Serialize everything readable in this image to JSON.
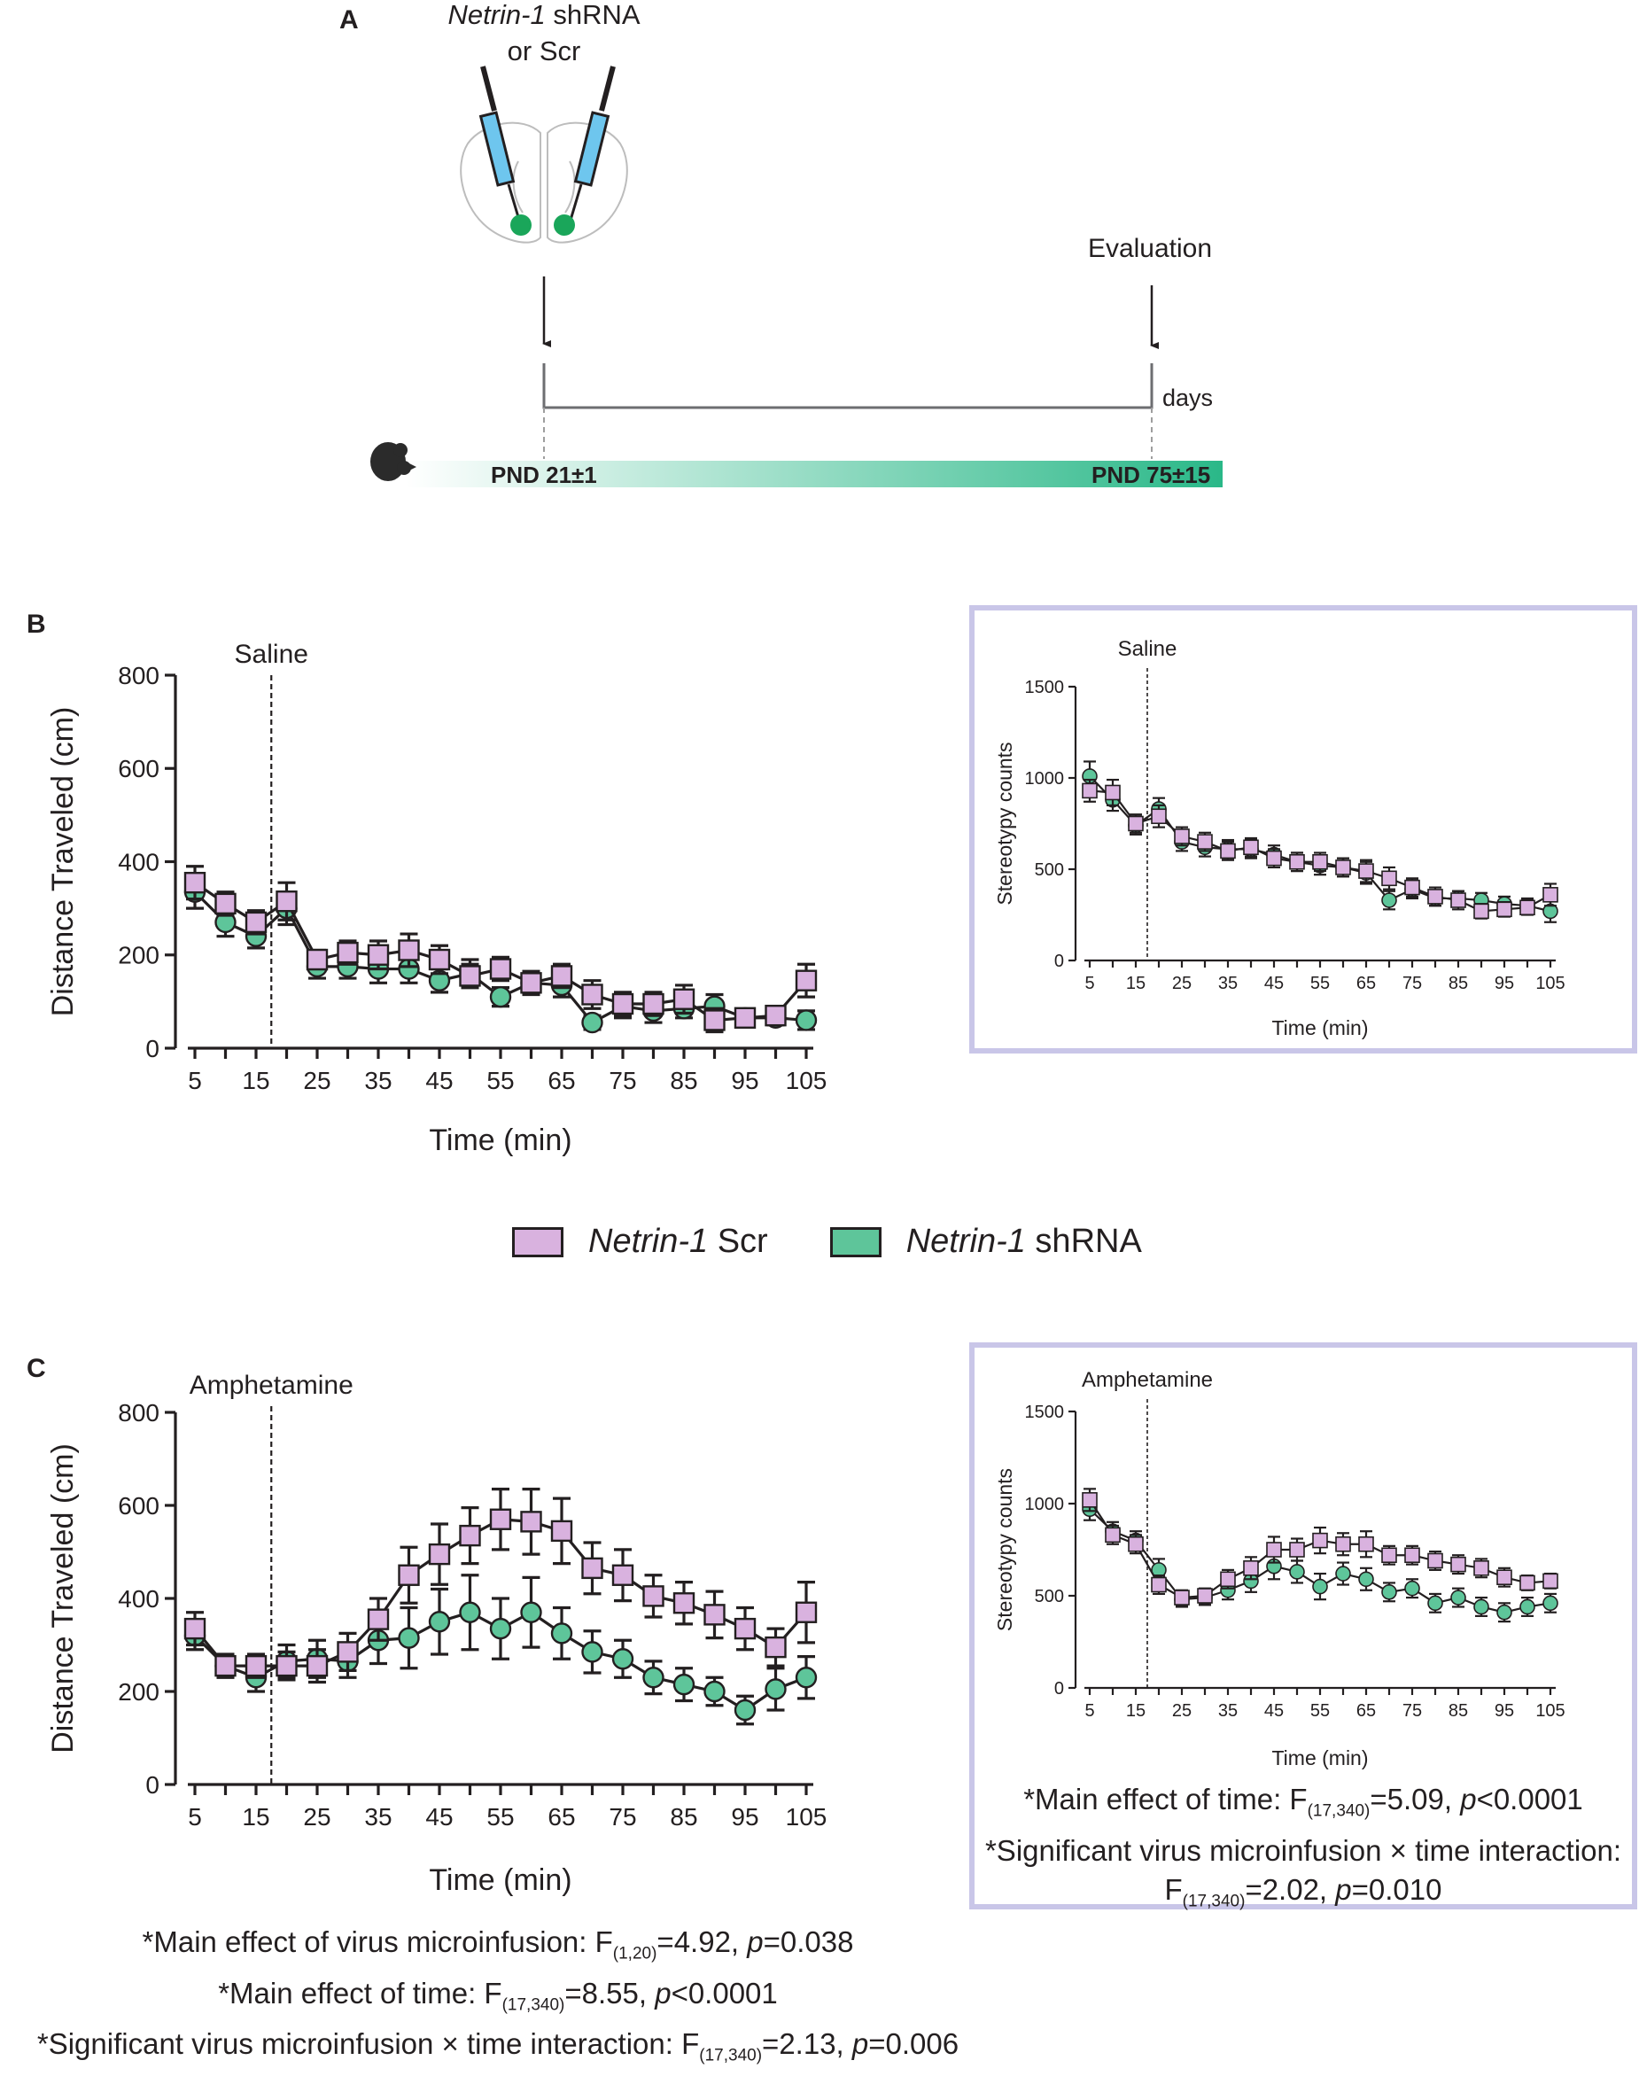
{
  "panel_letters": {
    "a": "A",
    "b": "B",
    "c": "C"
  },
  "timeline": {
    "injection_label_gene": "Netrin-1",
    "injection_label_rest": " shRNA",
    "injection_label_line2": "or Scr",
    "evaluation_label": "Evaluation",
    "days_label": "days",
    "start_label": "PND 21±1",
    "end_label": "PND 75±15",
    "colors": {
      "syringe": "#6ec6ee",
      "dot": "#1aa65a",
      "bar_start": "#ffffff",
      "bar_end": "#2ab888"
    }
  },
  "legend": {
    "scr_gene": "Netrin-1",
    "scr_rest": " Scr",
    "shrna_gene": "Netrin-1",
    "shrna_rest": " shRNA"
  },
  "colors": {
    "scr": "#d9b2df",
    "shrna": "#5ec59a",
    "inset_border": "#c9c6e8",
    "axis": "#231f20"
  },
  "chart_data": [
    {
      "id": "B-main",
      "type": "line",
      "treatment": "Saline",
      "xlabel": "Time (min)",
      "ylabel": "Distance Traveled (cm)",
      "xlim": [
        5,
        105
      ],
      "ylim": [
        0,
        800
      ],
      "yticks": [
        0,
        200,
        400,
        600,
        800
      ],
      "xticks": [
        5,
        15,
        25,
        35,
        45,
        55,
        65,
        75,
        85,
        95,
        105
      ],
      "injection_x": 17.5,
      "x": [
        5,
        10,
        15,
        20,
        25,
        30,
        35,
        40,
        45,
        50,
        55,
        60,
        65,
        70,
        75,
        80,
        85,
        90,
        95,
        100,
        105
      ],
      "series": [
        {
          "name": "Netrin-1 Scr",
          "marker": "square",
          "values": [
            355,
            310,
            270,
            315,
            190,
            205,
            200,
            210,
            190,
            155,
            170,
            140,
            155,
            115,
            95,
            95,
            105,
            60,
            65,
            70,
            145
          ],
          "errors": [
            35,
            25,
            25,
            40,
            20,
            25,
            30,
            35,
            30,
            25,
            25,
            20,
            25,
            30,
            25,
            25,
            30,
            25,
            15,
            20,
            35
          ]
        },
        {
          "name": "Netrin-1 shRNA",
          "marker": "circle",
          "values": [
            335,
            270,
            240,
            300,
            175,
            175,
            170,
            170,
            145,
            160,
            110,
            140,
            135,
            55,
            90,
            80,
            85,
            90,
            65,
            65,
            60
          ],
          "errors": [
            35,
            30,
            25,
            35,
            25,
            25,
            30,
            30,
            25,
            30,
            20,
            25,
            25,
            15,
            25,
            25,
            20,
            25,
            15,
            15,
            20
          ]
        }
      ]
    },
    {
      "id": "B-inset",
      "type": "line",
      "treatment": "Saline",
      "xlabel": "Time (min)",
      "ylabel": "Stereotypy counts",
      "xlim": [
        5,
        105
      ],
      "ylim": [
        0,
        1500
      ],
      "yticks": [
        0,
        500,
        1000,
        1500
      ],
      "xticks": [
        5,
        15,
        25,
        35,
        45,
        55,
        65,
        75,
        85,
        95,
        105
      ],
      "injection_x": 17.5,
      "x": [
        5,
        10,
        15,
        20,
        25,
        30,
        35,
        40,
        45,
        50,
        55,
        60,
        65,
        70,
        75,
        80,
        85,
        90,
        95,
        100,
        105
      ],
      "series": [
        {
          "name": "Netrin-1 Scr",
          "marker": "square",
          "values": [
            930,
            920,
            750,
            790,
            680,
            650,
            600,
            620,
            560,
            540,
            540,
            510,
            490,
            450,
            400,
            350,
            330,
            270,
            280,
            290,
            360
          ],
          "errors": [
            60,
            70,
            50,
            60,
            50,
            50,
            50,
            50,
            50,
            50,
            50,
            50,
            60,
            60,
            50,
            50,
            50,
            40,
            40,
            40,
            60
          ]
        },
        {
          "name": "Netrin-1 shRNA",
          "marker": "circle",
          "values": [
            1010,
            880,
            740,
            830,
            650,
            620,
            610,
            610,
            580,
            540,
            520,
            510,
            480,
            330,
            390,
            340,
            340,
            330,
            310,
            300,
            270
          ],
          "errors": [
            80,
            60,
            50,
            60,
            50,
            50,
            50,
            50,
            50,
            50,
            50,
            50,
            60,
            50,
            50,
            40,
            40,
            40,
            40,
            40,
            60
          ]
        }
      ]
    },
    {
      "id": "C-main",
      "type": "line",
      "treatment": "Amphetamine",
      "xlabel": "Time (min)",
      "ylabel": "Distance Traveled (cm)",
      "xlim": [
        5,
        105
      ],
      "ylim": [
        0,
        800
      ],
      "yticks": [
        0,
        200,
        400,
        600,
        800
      ],
      "xticks": [
        5,
        15,
        25,
        35,
        45,
        55,
        65,
        75,
        85,
        95,
        105
      ],
      "injection_x": 17.5,
      "x": [
        5,
        10,
        15,
        20,
        25,
        30,
        35,
        40,
        45,
        50,
        55,
        60,
        65,
        70,
        75,
        80,
        85,
        90,
        95,
        100,
        105
      ],
      "series": [
        {
          "name": "Netrin-1 Scr",
          "marker": "square",
          "values": [
            335,
            255,
            255,
            255,
            255,
            285,
            355,
            450,
            495,
            535,
            570,
            565,
            545,
            465,
            450,
            405,
            390,
            365,
            335,
            295,
            370
          ],
          "errors": [
            35,
            20,
            25,
            30,
            35,
            40,
            45,
            60,
            65,
            60,
            65,
            70,
            70,
            55,
            55,
            45,
            45,
            50,
            45,
            40,
            65
          ]
        },
        {
          "name": "Netrin-1 shRNA",
          "marker": "circle",
          "values": [
            320,
            255,
            230,
            265,
            270,
            265,
            310,
            315,
            350,
            370,
            335,
            370,
            325,
            285,
            270,
            230,
            215,
            200,
            160,
            205,
            230
          ],
          "errors": [
            30,
            25,
            30,
            35,
            40,
            35,
            50,
            65,
            70,
            80,
            65,
            75,
            55,
            45,
            40,
            35,
            35,
            30,
            30,
            45,
            45
          ]
        }
      ]
    },
    {
      "id": "C-inset",
      "type": "line",
      "treatment": "Amphetamine",
      "xlabel": "Time (min)",
      "ylabel": "Stereotypy counts",
      "xlim": [
        5,
        105
      ],
      "ylim": [
        0,
        1500
      ],
      "yticks": [
        0,
        500,
        1000,
        1500
      ],
      "xticks": [
        5,
        15,
        25,
        35,
        45,
        55,
        65,
        75,
        85,
        95,
        105
      ],
      "injection_x": 17.5,
      "x": [
        5,
        10,
        15,
        20,
        25,
        30,
        35,
        40,
        45,
        50,
        55,
        60,
        65,
        70,
        75,
        80,
        85,
        90,
        95,
        100,
        105
      ],
      "series": [
        {
          "name": "Netrin-1 Scr",
          "marker": "square",
          "values": [
            1020,
            830,
            780,
            560,
            490,
            500,
            590,
            650,
            750,
            750,
            800,
            780,
            780,
            720,
            720,
            690,
            670,
            650,
            600,
            570,
            580
          ],
          "errors": [
            60,
            50,
            50,
            50,
            40,
            40,
            50,
            60,
            70,
            60,
            70,
            60,
            70,
            50,
            50,
            50,
            50,
            50,
            50,
            40,
            40
          ]
        },
        {
          "name": "Netrin-1 shRNA",
          "marker": "circle",
          "values": [
            970,
            850,
            800,
            640,
            480,
            490,
            530,
            580,
            660,
            630,
            550,
            620,
            590,
            520,
            540,
            460,
            490,
            440,
            410,
            440,
            460
          ],
          "errors": [
            60,
            50,
            50,
            60,
            40,
            40,
            50,
            60,
            70,
            60,
            70,
            60,
            60,
            50,
            50,
            50,
            50,
            50,
            50,
            50,
            50
          ]
        }
      ]
    }
  ],
  "stats_b_inset": {
    "line1_pre": "*Main effect of time: F",
    "line1_sub": "(17,340)",
    "line1_mid": "=5.09, ",
    "line1_p": "p",
    "line1_post": "<0.0001",
    "line2": "*Significant virus microinfusion × time interaction:",
    "line3_pre": "F",
    "line3_sub": "(17,340)",
    "line3_mid": "=2.02, ",
    "line3_p": "p",
    "line3_post": "=0.010"
  },
  "stats_c_main": {
    "line1_pre": "*Main effect of virus microinfusion: F",
    "line1_sub": "(1,20)",
    "line1_mid": "=4.92, ",
    "line1_p": "p",
    "line1_post": "=0.038",
    "line2_pre": "*Main effect of time: F",
    "line2_sub": "(17,340)",
    "line2_mid": "=8.55, ",
    "line2_p": "p",
    "line2_post": "<0.0001",
    "line3_pre": "*Significant virus microinfusion × time interaction: F",
    "line3_sub": "(17,340)",
    "line3_mid": "=2.13, ",
    "line3_p": "p",
    "line3_post": "=0.006"
  }
}
